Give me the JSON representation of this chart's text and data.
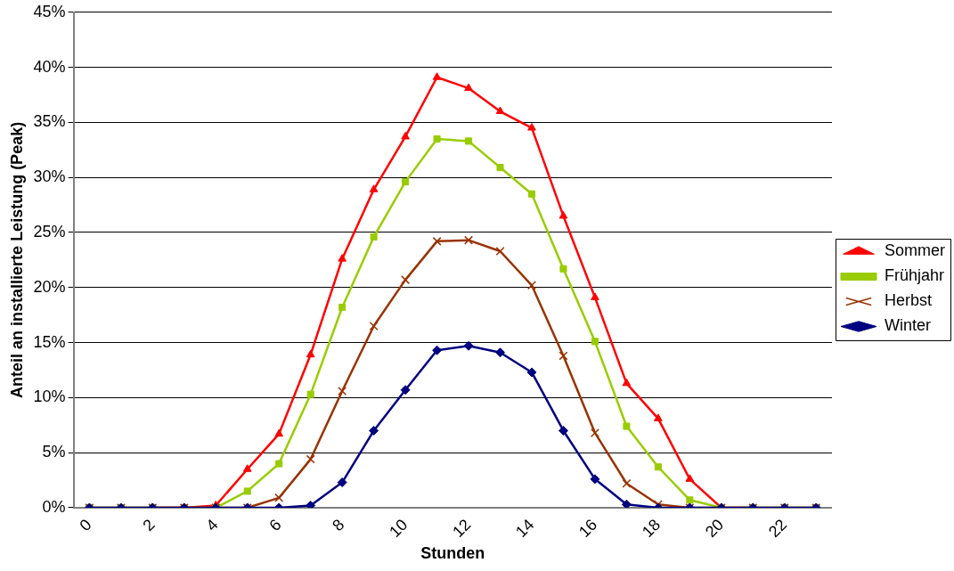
{
  "chart_data": {
    "type": "line",
    "xlabel": "Stunden",
    "ylabel": "Anteil an installierte Leistung (Peak)",
    "categories": [
      "0",
      null,
      "2",
      null,
      "4",
      null,
      "6",
      null,
      "8",
      null,
      "10",
      null,
      "12",
      null,
      "14",
      null,
      "16",
      null,
      "18",
      null,
      "20",
      null,
      "22",
      null
    ],
    "series": [
      {
        "name": "Sommer",
        "color": "#ff0000",
        "marker": "triangle",
        "values": [
          null,
          null,
          0,
          0,
          0.2,
          3.5,
          6.7,
          13.9,
          22.6,
          28.9,
          33.7,
          39.1,
          38.1,
          36.0,
          34.5,
          26.5,
          19.1,
          11.3,
          8.1,
          2.6,
          0,
          0,
          null,
          null
        ]
      },
      {
        "name": "Frühjahr",
        "color": "#99cc00",
        "marker": "square",
        "values": [
          0,
          0,
          0,
          0,
          0,
          1.5,
          4.0,
          10.3,
          18.2,
          24.6,
          29.6,
          33.5,
          33.3,
          30.9,
          28.5,
          21.7,
          15.1,
          7.4,
          3.7,
          0.7,
          0,
          0,
          0,
          0
        ]
      },
      {
        "name": "Herbst",
        "color": "#993300",
        "marker": "cross",
        "values": [
          0,
          0,
          0,
          0,
          0,
          0,
          0.9,
          4.4,
          10.6,
          16.5,
          20.7,
          24.2,
          24.3,
          23.3,
          20.2,
          13.8,
          6.8,
          2.2,
          0.3,
          0,
          0,
          0,
          0,
          0
        ]
      },
      {
        "name": "Winter",
        "color": "#000080",
        "marker": "diamond",
        "values": [
          0,
          0,
          0,
          0,
          0,
          0,
          0,
          0.2,
          2.3,
          7.0,
          10.7,
          14.3,
          14.7,
          14.1,
          12.3,
          7.0,
          2.6,
          0.3,
          0,
          0,
          0,
          0,
          0,
          0
        ]
      }
    ],
    "ylim": [
      0,
      45
    ],
    "yticks": [
      {
        "value": 0,
        "label": "0%"
      },
      {
        "value": 5,
        "label": "5%"
      },
      {
        "value": 10,
        "label": "10%"
      },
      {
        "value": 15,
        "label": "15%"
      },
      {
        "value": 20,
        "label": "20%"
      },
      {
        "value": 25,
        "label": "25%"
      },
      {
        "value": 30,
        "label": "30%"
      },
      {
        "value": 35,
        "label": "35%"
      },
      {
        "value": 40,
        "label": "40%"
      },
      {
        "value": 45,
        "label": "45%"
      }
    ],
    "grid": "y",
    "legend": "right",
    "line_style": "solid"
  }
}
